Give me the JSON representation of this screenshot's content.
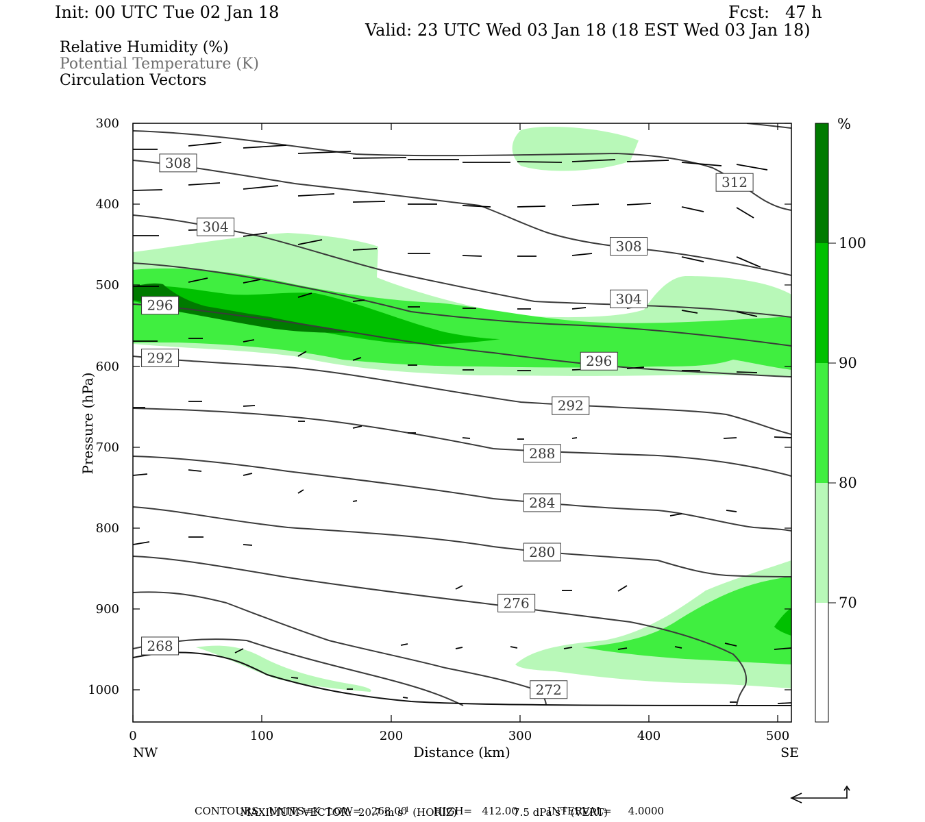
{
  "header": {
    "init": "Init: 00 UTC Tue 02 Jan 18",
    "fcst": "Fcst:   47 h",
    "valid": "Valid: 23 UTC Wed 03 Jan 18 (18 EST Wed 03 Jan 18)"
  },
  "legend": {
    "line1": "Relative Humidity (%)",
    "line2": "Potential Temperature (K)",
    "line3": "Circulation Vectors"
  },
  "axes": {
    "ylabel": "Pressure (hPa)",
    "xlabel": "Distance (km)",
    "x_left": "NW",
    "x_right": "SE"
  },
  "colorbar": {
    "unit": "%",
    "labels": [
      "70",
      "80",
      "90",
      "100"
    ],
    "colors": [
      "#ffffff",
      "#b8f8b8",
      "#40ee40",
      "#00c000",
      "#007a00"
    ]
  },
  "footer": {
    "max_vector_prefix": "MAXIMUM VECTOR:  20.7 m s",
    "horiz_suffix": " (HORIZ)",
    "vert_prefix": "7.5 dPa s",
    "vert_suffix": " (VERT)",
    "sup": "-1",
    "contours": "CONTOURS:  UNITS=K  LOW=   268.00        HIGH=   412.00         INTERVAL=     4.0000"
  },
  "chart_data": {
    "type": "cross-section",
    "title": "",
    "xlabel": "Distance (km)",
    "ylabel": "Pressure (hPa)",
    "xlim": [
      0,
      510
    ],
    "ylim": [
      1040,
      300
    ],
    "x_ticks": [
      0,
      100,
      200,
      300,
      400,
      500
    ],
    "y_ticks": [
      300,
      400,
      500,
      600,
      700,
      800,
      900,
      1000
    ],
    "rh_levels": [
      70,
      80,
      90,
      100
    ],
    "rh_colors": [
      "#b8f8b8",
      "#40ee40",
      "#00c000",
      "#007a00"
    ],
    "theta_labels": [
      {
        "text": "308",
        "x": 35,
        "p": 349
      },
      {
        "text": "312",
        "x": 466,
        "p": 373
      },
      {
        "text": "304",
        "x": 64,
        "p": 428
      },
      {
        "text": "308",
        "x": 384,
        "p": 452
      },
      {
        "text": "304",
        "x": 384,
        "p": 517
      },
      {
        "text": "296",
        "x": 21,
        "p": 525
      },
      {
        "text": "296",
        "x": 361,
        "p": 594
      },
      {
        "text": "292",
        "x": 21,
        "p": 590
      },
      {
        "text": "292",
        "x": 339,
        "p": 649
      },
      {
        "text": "288",
        "x": 317,
        "p": 708
      },
      {
        "text": "284",
        "x": 317,
        "p": 769
      },
      {
        "text": "280",
        "x": 317,
        "p": 830
      },
      {
        "text": "276",
        "x": 297,
        "p": 893
      },
      {
        "text": "268",
        "x": 21,
        "p": 946
      },
      {
        "text": "272",
        "x": 322,
        "p": 1000
      }
    ]
  }
}
